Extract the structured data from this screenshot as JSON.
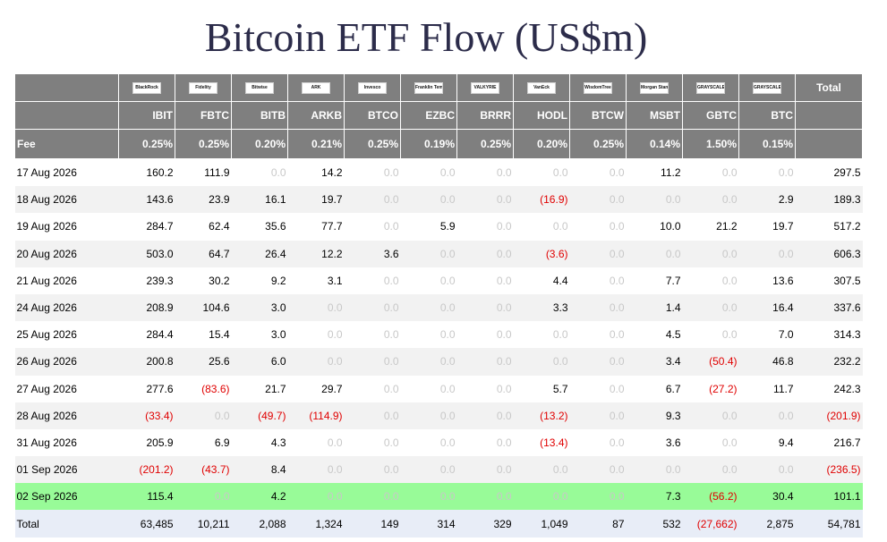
{
  "title": "Bitcoin ETF Flow (US$m)",
  "colors": {
    "header_bg": "#7f7f7f",
    "highlight_row": "#98fb98",
    "negative": "#e00000",
    "zero": "#c8c8c8",
    "total_row": "#e8edf7"
  },
  "header": {
    "total_label": "Total",
    "fee_label": "Fee",
    "logos": [
      "BlackRock",
      "Fidelity",
      "Bitwise",
      "ARK",
      "Invesco",
      "Franklin Templeton",
      "VALKYRIE",
      "VanEck",
      "WisdomTree",
      "Morgan Stanley",
      "GRAYSCALE",
      "GRAYSCALE"
    ],
    "tickers": [
      "IBIT",
      "FBTC",
      "BITB",
      "ARKB",
      "BTCO",
      "EZBC",
      "BRRR",
      "HODL",
      "BTCW",
      "MSBT",
      "GBTC",
      "BTC"
    ],
    "fees": [
      "0.25%",
      "0.25%",
      "0.20%",
      "0.21%",
      "0.25%",
      "0.19%",
      "0.25%",
      "0.20%",
      "0.25%",
      "0.14%",
      "1.50%",
      "0.15%"
    ]
  },
  "chart_data": {
    "type": "table",
    "title": "Bitcoin ETF Flow (US$m)",
    "columns": [
      "IBIT",
      "FBTC",
      "BITB",
      "ARKB",
      "BTCO",
      "EZBC",
      "BRRR",
      "HODL",
      "BTCW",
      "MSBT",
      "GBTC",
      "BTC",
      "Total"
    ],
    "rows": [
      {
        "date": "17 Aug 2026",
        "values": [
          "160.2",
          "111.9",
          "0.0",
          "14.2",
          "0.0",
          "0.0",
          "0.0",
          "0.0",
          "0.0",
          "11.2",
          "0.0",
          "0.0",
          "297.5"
        ]
      },
      {
        "date": "18 Aug 2026",
        "values": [
          "143.6",
          "23.9",
          "16.1",
          "19.7",
          "0.0",
          "0.0",
          "0.0",
          "(16.9)",
          "0.0",
          "0.0",
          "0.0",
          "2.9",
          "189.3"
        ]
      },
      {
        "date": "19 Aug 2026",
        "values": [
          "284.7",
          "62.4",
          "35.6",
          "77.7",
          "0.0",
          "5.9",
          "0.0",
          "0.0",
          "0.0",
          "10.0",
          "21.2",
          "19.7",
          "517.2"
        ]
      },
      {
        "date": "20 Aug 2026",
        "values": [
          "503.0",
          "64.7",
          "26.4",
          "12.2",
          "3.6",
          "0.0",
          "0.0",
          "(3.6)",
          "0.0",
          "0.0",
          "0.0",
          "0.0",
          "606.3"
        ]
      },
      {
        "date": "21 Aug 2026",
        "values": [
          "239.3",
          "30.2",
          "9.2",
          "3.1",
          "0.0",
          "0.0",
          "0.0",
          "4.4",
          "0.0",
          "7.7",
          "0.0",
          "13.6",
          "307.5"
        ]
      },
      {
        "date": "24 Aug 2026",
        "values": [
          "208.9",
          "104.6",
          "3.0",
          "0.0",
          "0.0",
          "0.0",
          "0.0",
          "3.3",
          "0.0",
          "1.4",
          "0.0",
          "16.4",
          "337.6"
        ]
      },
      {
        "date": "25 Aug 2026",
        "values": [
          "284.4",
          "15.4",
          "3.0",
          "0.0",
          "0.0",
          "0.0",
          "0.0",
          "0.0",
          "0.0",
          "4.5",
          "0.0",
          "7.0",
          "314.3"
        ]
      },
      {
        "date": "26 Aug 2026",
        "values": [
          "200.8",
          "25.6",
          "6.0",
          "0.0",
          "0.0",
          "0.0",
          "0.0",
          "0.0",
          "0.0",
          "3.4",
          "(50.4)",
          "46.8",
          "232.2"
        ]
      },
      {
        "date": "27 Aug 2026",
        "values": [
          "277.6",
          "(83.6)",
          "21.7",
          "29.7",
          "0.0",
          "0.0",
          "0.0",
          "5.7",
          "0.0",
          "6.7",
          "(27.2)",
          "11.7",
          "242.3"
        ]
      },
      {
        "date": "28 Aug 2026",
        "values": [
          "(33.4)",
          "0.0",
          "(49.7)",
          "(114.9)",
          "0.0",
          "0.0",
          "0.0",
          "(13.2)",
          "0.0",
          "9.3",
          "0.0",
          "0.0",
          "(201.9)"
        ]
      },
      {
        "date": "31 Aug 2026",
        "values": [
          "205.9",
          "6.9",
          "4.3",
          "0.0",
          "0.0",
          "0.0",
          "0.0",
          "(13.4)",
          "0.0",
          "3.6",
          "0.0",
          "9.4",
          "216.7"
        ]
      },
      {
        "date": "01 Sep 2026",
        "values": [
          "(201.2)",
          "(43.7)",
          "8.4",
          "0.0",
          "0.0",
          "0.0",
          "0.0",
          "0.0",
          "0.0",
          "0.0",
          "0.0",
          "0.0",
          "(236.5)"
        ]
      },
      {
        "date": "02 Sep 2026",
        "values": [
          "115.4",
          "0.0",
          "4.2",
          "0.0",
          "0.0",
          "0.0",
          "0.0",
          "0.0",
          "0.0",
          "7.3",
          "(56.2)",
          "30.4",
          "101.1"
        ],
        "highlight": true
      }
    ],
    "total": {
      "label": "Total",
      "values": [
        "63,485",
        "10,211",
        "2,088",
        "1,324",
        "149",
        "314",
        "329",
        "1,049",
        "87",
        "532",
        "(27,662)",
        "2,875",
        "54,781"
      ]
    }
  }
}
